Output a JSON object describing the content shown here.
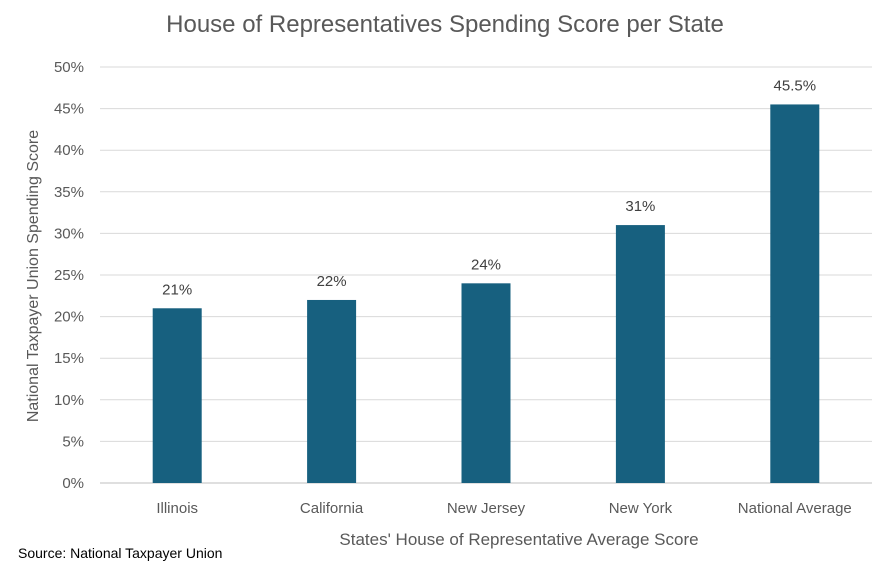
{
  "chart_data": {
    "type": "bar",
    "title": "House of Representatives Spending Score per State",
    "xlabel": "States' House of Representative Average Score",
    "ylabel": "National Taxpayer Union Spending Score",
    "categories": [
      "Illinois",
      "California",
      "New Jersey",
      "New York",
      "National Average"
    ],
    "values": [
      21,
      22,
      24,
      31,
      45.5
    ],
    "data_labels": [
      "21%",
      "22%",
      "24%",
      "31%",
      "45.5%"
    ],
    "ylim": [
      0,
      50
    ],
    "yticks": [
      "0%",
      "5%",
      "10%",
      "15%",
      "20%",
      "25%",
      "30%",
      "35%",
      "40%",
      "45%",
      "50%"
    ],
    "grid": true,
    "legend": "none",
    "bar_color": "#17607f",
    "source": "Source: National Taxpayer Union"
  }
}
